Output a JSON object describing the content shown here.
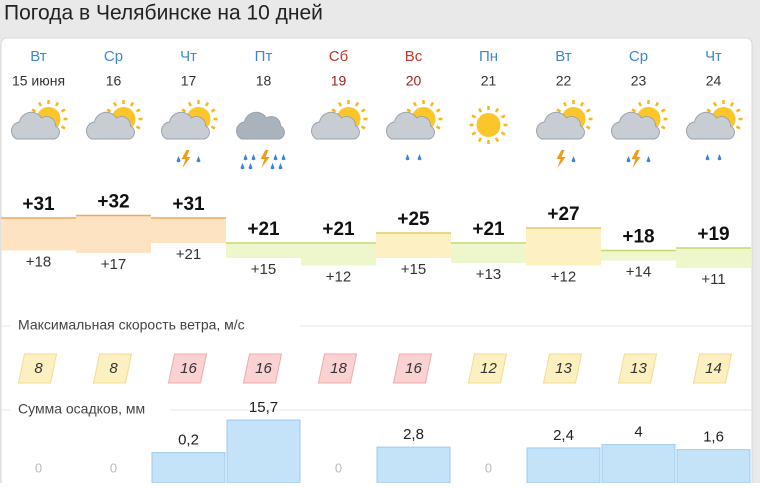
{
  "header": {
    "title": "Погода в Челябинске на 10 дней"
  },
  "wind_title": "Максимальная скорость ветра, м/с",
  "precip_title": "Сумма осадков, мм",
  "days": [
    {
      "weekday": "Вт",
      "date": "15 июня",
      "max": {
        "value": 31,
        "label": "+31"
      },
      "min": {
        "value": 18,
        "label": "+18"
      },
      "wind": 8,
      "precip": 0
    },
    {
      "weekday": "Ср",
      "date": "16",
      "max": {
        "value": 32,
        "label": "+32"
      },
      "min": {
        "value": 17,
        "label": "+17"
      },
      "wind": 8,
      "precip": 0
    },
    {
      "weekday": "Чт",
      "date": "17",
      "max": {
        "value": 31,
        "label": "+31"
      },
      "min": {
        "value": 21,
        "label": "+21"
      },
      "wind": 16,
      "precip": {
        "value": 0.2,
        "label": "0,2"
      }
    },
    {
      "weekday": "Пт",
      "date": "18",
      "max": {
        "value": 21,
        "label": "+21"
      },
      "min": {
        "value": 15,
        "label": "+15"
      },
      "wind": 16,
      "precip": {
        "value": 15.7,
        "label": "15,7"
      }
    },
    {
      "weekday": "Сб",
      "date": "19",
      "max": {
        "value": 21,
        "label": "+21"
      },
      "min": {
        "value": 12,
        "label": "+12"
      },
      "wind": 18,
      "precip": 0
    },
    {
      "weekday": "Вс",
      "date": "20",
      "max": {
        "value": 25,
        "label": "+25"
      },
      "min": {
        "value": 15,
        "label": "+15"
      },
      "wind": 16,
      "precip": {
        "value": 2.8,
        "label": "2,8"
      }
    },
    {
      "weekday": "Пн",
      "date": "21",
      "max": {
        "value": 21,
        "label": "+21"
      },
      "min": {
        "value": 13,
        "label": "+13"
      },
      "wind": 12,
      "precip": 0
    },
    {
      "weekday": "Вт",
      "date": "22",
      "max": {
        "value": 27,
        "label": "+27"
      },
      "min": {
        "value": 12,
        "label": "+12"
      },
      "wind": 13,
      "precip": {
        "value": 2.4,
        "label": "2,4"
      }
    },
    {
      "weekday": "Ср",
      "date": "23",
      "max": {
        "value": 18,
        "label": "+18"
      },
      "min": {
        "value": 14,
        "label": "+14"
      },
      "wind": 13,
      "precip": 4
    },
    {
      "weekday": "Чт",
      "date": "24",
      "max": {
        "value": 19,
        "label": "+19"
      },
      "min": {
        "value": 11,
        "label": "+11"
      },
      "wind": 14,
      "precip": {
        "value": 1.6,
        "label": "1,6"
      }
    }
  ]
}
